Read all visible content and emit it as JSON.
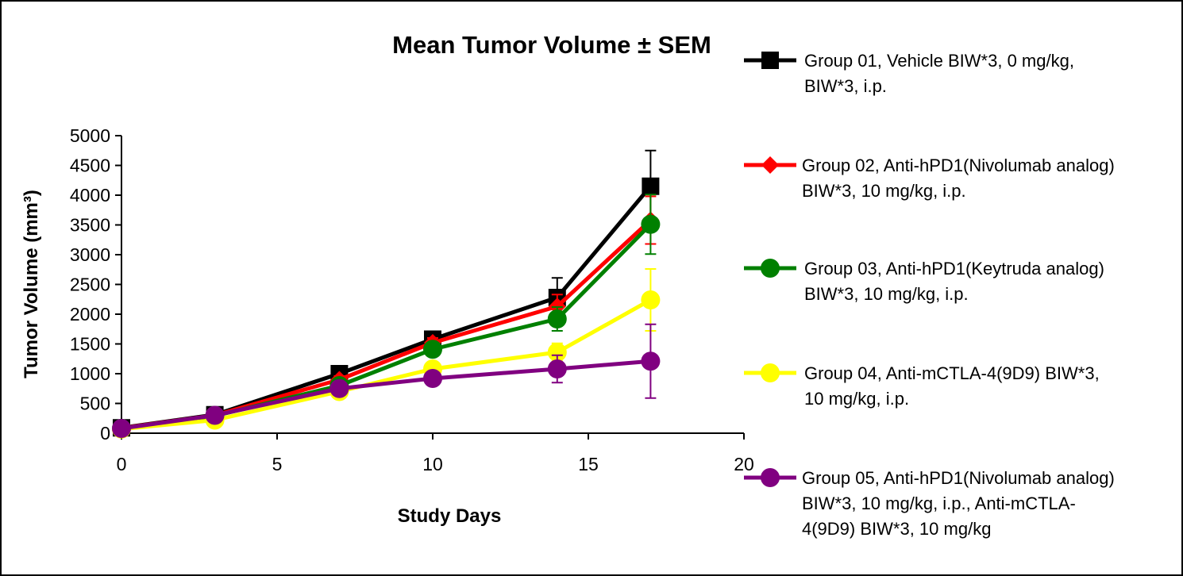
{
  "chart_data": {
    "type": "line",
    "title": "Mean Tumor Volume ± SEM",
    "xlabel": "Study Days",
    "ylabel": "Tumor Volume (mm³)",
    "xlim": [
      0,
      20
    ],
    "ylim": [
      0,
      5000
    ],
    "xticks": [
      "0",
      "5",
      "10",
      "15",
      "20"
    ],
    "yticks": [
      "0",
      "500",
      "1000",
      "1500",
      "2000",
      "2500",
      "3000",
      "3500",
      "4000",
      "4500",
      "5000"
    ],
    "grid": false,
    "legend_position": "right",
    "x": [
      0,
      3,
      7,
      10,
      14,
      17
    ],
    "series": [
      {
        "name": "Group 01, Vehicle BIW*3, 0 mg/kg, BIW*3, i.p.",
        "legend_lines": [
          "Group 01, Vehicle BIW*3, 0 mg/kg,",
          "BIW*3, i.p."
        ],
        "color": "#000000",
        "marker": "square",
        "values": [
          90,
          310,
          1000,
          1580,
          2280,
          4150
        ],
        "errors": [
          20,
          40,
          60,
          90,
          330,
          600
        ]
      },
      {
        "name": "Group 02, Anti-hPD1(Nivolumab analog) BIW*3, 10 mg/kg, i.p.",
        "legend_lines": [
          "Group 02, Anti-hPD1(Nivolumab analog)",
          "BIW*3, 10 mg/kg, i.p."
        ],
        "color": "#ff0000",
        "marker": "diamond",
        "values": [
          85,
          300,
          900,
          1520,
          2130,
          3580
        ],
        "errors": [
          20,
          40,
          60,
          80,
          200,
          400
        ]
      },
      {
        "name": "Group 03, Anti-hPD1(Keytruda analog) BIW*3, 10 mg/kg, i.p.",
        "legend_lines": [
          "Group 03, Anti-hPD1(Keytruda analog)",
          "BIW*3, 10 mg/kg, i.p."
        ],
        "color": "#008000",
        "marker": "circle",
        "values": [
          80,
          290,
          800,
          1410,
          1920,
          3510
        ],
        "errors": [
          20,
          40,
          60,
          80,
          200,
          500
        ]
      },
      {
        "name": "Group 04, Anti-mCTLA-4(9D9) BIW*3, 10 mg/kg, i.p.",
        "legend_lines": [
          "Group 04, Anti-mCTLA-4(9D9) BIW*3,",
          "10 mg/kg, i.p."
        ],
        "color": "#ffff00",
        "marker": "circle",
        "values": [
          70,
          220,
          700,
          1080,
          1360,
          2240
        ],
        "errors": [
          15,
          30,
          50,
          80,
          150,
          520
        ]
      },
      {
        "name": "Group 05, Anti-hPD1(Nivolumab analog) BIW*3, 10 mg/kg, i.p., Anti-mCTLA-4(9D9) BIW*3, 10 mg/kg",
        "legend_lines": [
          "Group 05, Anti-hPD1(Nivolumab analog)",
          "BIW*3, 10 mg/kg, i.p., Anti-mCTLA-",
          "4(9D9) BIW*3, 10 mg/kg"
        ],
        "color": "#800080",
        "marker": "circle",
        "values": [
          80,
          300,
          750,
          920,
          1080,
          1210
        ],
        "errors": [
          20,
          40,
          50,
          80,
          230,
          620
        ]
      }
    ]
  }
}
